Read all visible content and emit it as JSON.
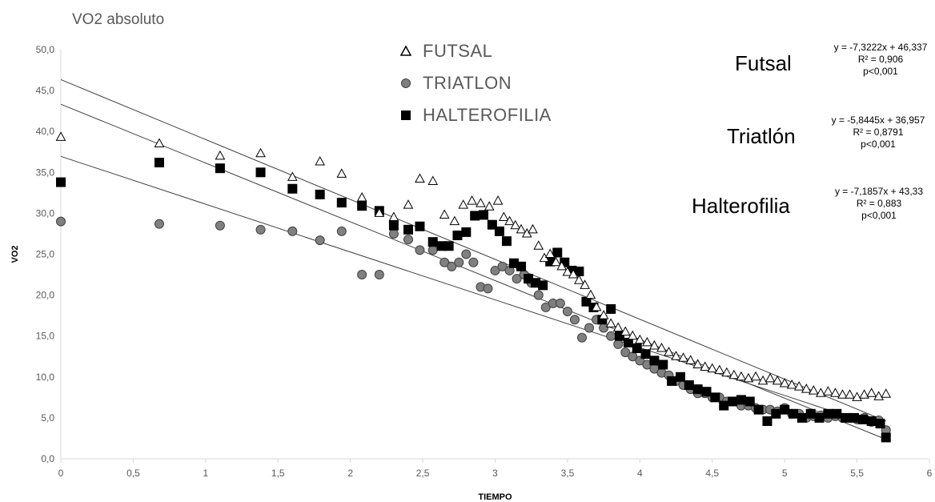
{
  "chart_data": {
    "type": "scatter",
    "title": "VO2 absoluto",
    "xlabel": "TIEMPO",
    "ylabel": "VO2",
    "xlim": [
      0,
      6
    ],
    "ylim": [
      0,
      50
    ],
    "xticks": [
      "0",
      "0,5",
      "1",
      "1,5",
      "2",
      "2,5",
      "3",
      "3,5",
      "4",
      "4,5",
      "5",
      "5,5",
      "6"
    ],
    "yticks": [
      "0,0",
      "5,0",
      "10,0",
      "15,0",
      "20,0",
      "25,0",
      "30,0",
      "35,0",
      "40,0",
      "45,0",
      "50,0"
    ],
    "grid": false,
    "legend_position": "top-center",
    "series": [
      {
        "name": "FUTSAL",
        "marker": "triangle-open",
        "color": "#000000",
        "x": [
          0,
          0.68,
          1.1,
          1.38,
          1.6,
          1.79,
          1.94,
          2.08,
          2.2,
          2.3,
          2.4,
          2.48,
          2.57,
          2.65,
          2.72,
          2.78,
          2.84,
          2.9,
          2.96,
          3.02,
          3.06,
          3.1,
          3.14,
          3.18,
          3.22,
          3.26,
          3.3,
          3.34,
          3.38,
          3.42,
          3.46,
          3.5,
          3.54,
          3.58,
          3.62,
          3.66,
          3.7,
          3.75,
          3.8,
          3.85,
          3.9,
          3.95,
          4.0,
          4.05,
          4.1,
          4.15,
          4.2,
          4.25,
          4.3,
          4.35,
          4.4,
          4.45,
          4.5,
          4.55,
          4.6,
          4.65,
          4.7,
          4.75,
          4.8,
          4.85,
          4.9,
          4.95,
          5.0,
          5.05,
          5.1,
          5.15,
          5.2,
          5.25,
          5.3,
          5.35,
          5.4,
          5.45,
          5.5,
          5.55,
          5.6,
          5.65,
          5.7
        ],
        "y": [
          39.3,
          38.5,
          37.0,
          37.3,
          34.4,
          36.3,
          34.8,
          31.9,
          30.0,
          29.5,
          31.0,
          34.2,
          33.9,
          29.8,
          29.0,
          31.0,
          31.5,
          31.2,
          30.8,
          31.5,
          29.5,
          29.0,
          28.5,
          28.0,
          27.5,
          28.0,
          26.0,
          24.5,
          25.0,
          24.0,
          23.5,
          22.8,
          22.5,
          21.8,
          21.2,
          20.0,
          18.5,
          17.5,
          16.5,
          16.0,
          15.5,
          15.0,
          14.5,
          14.2,
          13.8,
          13.5,
          13.0,
          12.5,
          12.3,
          12.0,
          11.5,
          11.2,
          11.0,
          10.8,
          10.5,
          10.2,
          10.0,
          9.8,
          10.0,
          9.5,
          9.8,
          9.5,
          9.2,
          9.0,
          8.8,
          8.5,
          8.3,
          8.0,
          8.2,
          8.0,
          7.8,
          7.8,
          7.5,
          7.8,
          8.0,
          7.6,
          7.9
        ]
      },
      {
        "name": "TRIATLON",
        "marker": "circle",
        "color": "#808080",
        "x": [
          0,
          0.68,
          1.1,
          1.38,
          1.6,
          1.79,
          1.94,
          2.08,
          2.2,
          2.3,
          2.4,
          2.48,
          2.57,
          2.65,
          2.7,
          2.75,
          2.8,
          2.85,
          2.9,
          2.95,
          3.0,
          3.05,
          3.1,
          3.15,
          3.2,
          3.25,
          3.3,
          3.35,
          3.4,
          3.45,
          3.5,
          3.55,
          3.6,
          3.65,
          3.7,
          3.75,
          3.8,
          3.85,
          3.9,
          3.95,
          4.0,
          4.05,
          4.1,
          4.15,
          4.2,
          4.25,
          4.3,
          4.35,
          4.4,
          4.45,
          4.5,
          4.55,
          4.6,
          4.65,
          4.7,
          4.75,
          4.8,
          4.85,
          4.9,
          4.95,
          5.0,
          5.05,
          5.1,
          5.15,
          5.2,
          5.25,
          5.3,
          5.35,
          5.4,
          5.45,
          5.5,
          5.55,
          5.6,
          5.65,
          5.7
        ],
        "y": [
          29.0,
          28.7,
          28.5,
          28.0,
          27.8,
          26.7,
          27.8,
          22.5,
          22.5,
          27.5,
          26.8,
          25.5,
          25.5,
          24.0,
          23.5,
          24.0,
          25.0,
          24.0,
          21.0,
          20.8,
          23.0,
          23.5,
          23.0,
          22.0,
          22.5,
          21.5,
          20.0,
          18.5,
          19.0,
          19.0,
          18.0,
          17.0,
          14.8,
          16.0,
          17.0,
          16.0,
          15.0,
          14.0,
          13.0,
          12.5,
          12.0,
          11.5,
          11.0,
          10.5,
          10.2,
          9.5,
          9.0,
          8.5,
          8.0,
          8.0,
          7.5,
          7.5,
          7.0,
          7.0,
          6.5,
          6.5,
          6.2,
          6.0,
          6.0,
          5.8,
          6.2,
          5.5,
          5.5,
          5.0,
          5.2,
          5.3,
          5.0,
          5.2,
          5.0,
          5.0,
          4.8,
          5.0,
          4.5,
          4.7,
          3.5
        ]
      },
      {
        "name": "HALTEROFILIA",
        "marker": "square",
        "color": "#000000",
        "x": [
          0,
          0.68,
          1.1,
          1.38,
          1.6,
          1.79,
          1.94,
          2.08,
          2.2,
          2.3,
          2.4,
          2.48,
          2.57,
          2.63,
          2.68,
          2.74,
          2.8,
          2.86,
          2.92,
          2.98,
          3.03,
          3.08,
          3.13,
          3.18,
          3.23,
          3.28,
          3.33,
          3.38,
          3.43,
          3.48,
          3.53,
          3.58,
          3.63,
          3.68,
          3.74,
          3.8,
          3.86,
          3.92,
          3.98,
          4.04,
          4.1,
          4.16,
          4.22,
          4.28,
          4.34,
          4.4,
          4.46,
          4.52,
          4.58,
          4.64,
          4.7,
          4.76,
          4.82,
          4.88,
          4.94,
          5.0,
          5.06,
          5.12,
          5.18,
          5.24,
          5.3,
          5.36,
          5.42,
          5.48,
          5.54,
          5.6,
          5.66,
          5.7
        ],
        "y": [
          33.8,
          36.2,
          35.5,
          35.0,
          33.0,
          32.3,
          31.3,
          30.9,
          30.3,
          28.5,
          28.0,
          28.4,
          26.5,
          26.0,
          26.0,
          27.3,
          27.7,
          29.7,
          29.8,
          28.6,
          27.8,
          26.6,
          23.9,
          23.5,
          22.0,
          21.5,
          21.2,
          24.1,
          25.2,
          24.0,
          23.0,
          22.9,
          19.2,
          18.5,
          17.0,
          18.3,
          15.0,
          14.2,
          13.5,
          12.8,
          12.0,
          11.5,
          9.5,
          10.0,
          9.0,
          8.5,
          8.2,
          7.5,
          6.5,
          7.0,
          7.2,
          7.0,
          6.0,
          4.6,
          5.5,
          6.0,
          5.5,
          5.0,
          5.5,
          5.0,
          5.5,
          5.5,
          5.0,
          5.0,
          4.8,
          4.6,
          4.3,
          2.6
        ]
      }
    ],
    "trendlines": [
      {
        "series": "FUTSAL",
        "slope": -7.3222,
        "intercept": 46.337
      },
      {
        "series": "TRIATLON",
        "slope": -5.8445,
        "intercept": 36.957
      },
      {
        "series": "HALTEROFILIA",
        "slope": -7.1857,
        "intercept": 43.33
      }
    ],
    "annotations": [
      {
        "name": "Futsal",
        "equation": "y = -7,3222x + 46,337",
        "r2": "R² = 0,906",
        "p": "p<0,001"
      },
      {
        "name": "Triatlón",
        "equation": "y = -5,8445x + 36,957",
        "r2": "R² = 0,8791",
        "p": "p<0,001"
      },
      {
        "name": "Halterofilia",
        "equation": "y = -7,1857x + 43,33",
        "r2": "R² = 0,883",
        "p": "p<0,001"
      }
    ]
  }
}
